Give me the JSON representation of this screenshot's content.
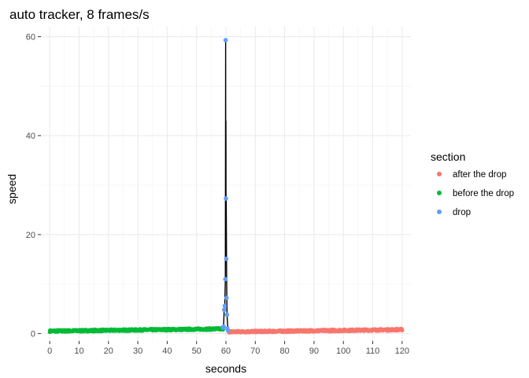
{
  "chart_data": {
    "type": "scatter",
    "title": "auto tracker, 8 frames/s",
    "xlabel": "seconds",
    "ylabel": "speed",
    "xlim": [
      -3,
      123
    ],
    "ylim": [
      -1.5,
      62
    ],
    "x_ticks": [
      0,
      10,
      20,
      30,
      40,
      50,
      60,
      70,
      80,
      90,
      100,
      110,
      120
    ],
    "y_ticks": [
      0,
      20,
      40,
      60
    ],
    "grid": true,
    "legend_title": "section",
    "legend_position": "right",
    "series": [
      {
        "name": "after the drop",
        "color": "#F8766D",
        "x_range": [
          61,
          120
        ],
        "y_start": 0.35,
        "y_end": 0.8,
        "points_per_second": 8
      },
      {
        "name": "before the drop",
        "color": "#00BA38",
        "x_range": [
          0,
          59
        ],
        "y_start": 0.5,
        "y_end": 0.95,
        "points_per_second": 8
      },
      {
        "name": "drop",
        "color": "#619CFF",
        "points": [
          [
            59.0,
            1.2
          ],
          [
            59.2,
            1.4
          ],
          [
            59.4,
            4.8
          ],
          [
            59.6,
            5.6
          ],
          [
            59.8,
            11.0
          ],
          [
            59.9,
            59.3
          ],
          [
            60.0,
            27.3
          ],
          [
            60.1,
            15.1
          ],
          [
            60.2,
            7.2
          ],
          [
            60.35,
            3.8
          ],
          [
            60.5,
            1.0
          ],
          [
            60.75,
            0.6
          ]
        ]
      }
    ],
    "line": {
      "color": "#000000",
      "points": [
        [
          59.0,
          1.2
        ],
        [
          59.2,
          1.4
        ],
        [
          59.4,
          4.8
        ],
        [
          59.6,
          5.6
        ],
        [
          59.8,
          11.0
        ],
        [
          59.9,
          59.3
        ],
        [
          59.95,
          20.0
        ],
        [
          60.0,
          43.0
        ],
        [
          60.05,
          18.0
        ],
        [
          60.1,
          27.3
        ],
        [
          60.2,
          15.1
        ],
        [
          60.3,
          7.2
        ],
        [
          60.4,
          3.8
        ],
        [
          60.55,
          2.0
        ],
        [
          60.75,
          0.6
        ],
        [
          61.0,
          0.4
        ]
      ]
    }
  }
}
